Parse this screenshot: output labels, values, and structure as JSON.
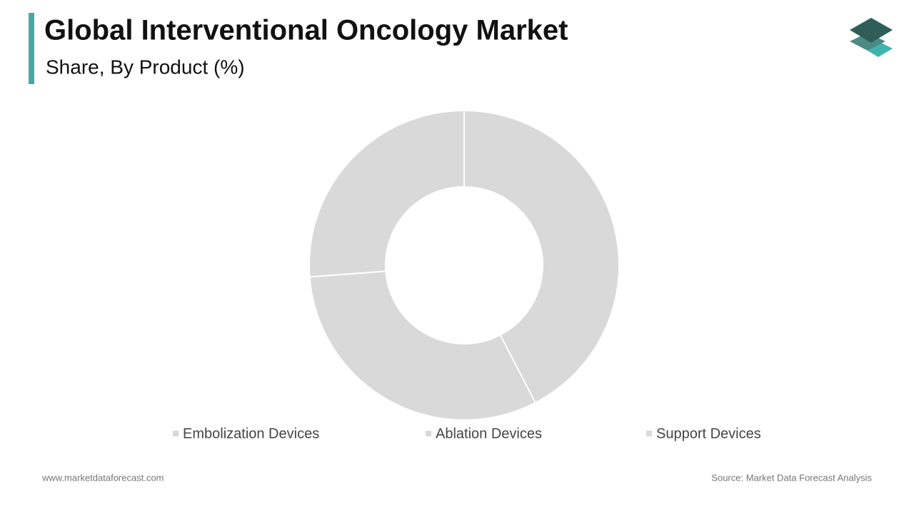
{
  "chart_data": {
    "type": "donut",
    "title": "Global Interventional Oncology Market",
    "subtitle": "Share, By Product (%)",
    "categories": [
      "Embolization Devices",
      "Ablation Devices",
      "Support Devices"
    ],
    "values": [
      42.4,
      31.4,
      26.2
    ],
    "colors": [
      "#d9d9d9",
      "#d9d9d9",
      "#d9d9d9"
    ],
    "legend": "bottom"
  },
  "footer": {
    "website": "www.marketdataforecast.com",
    "source": "Source: Market Data Forecast Analysis"
  }
}
